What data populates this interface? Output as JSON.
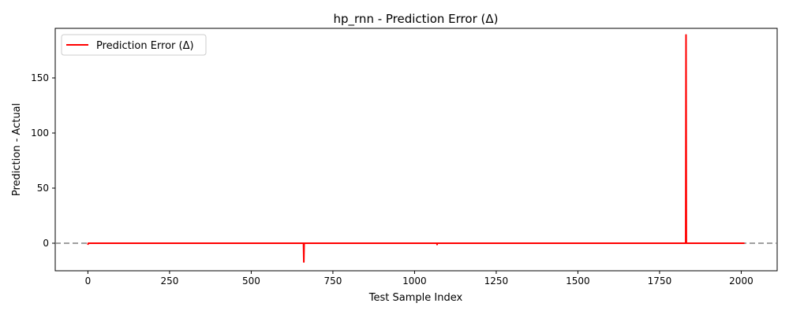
{
  "chart_data": {
    "type": "line",
    "title": "hp_rnn - Prediction Error (Δ)",
    "xlabel": "Test Sample Index",
    "ylabel": "Prediction - Actual",
    "xlim": [
      -100,
      2110
    ],
    "ylim": [
      -25,
      195
    ],
    "x_ticks": [
      0,
      250,
      500,
      750,
      1000,
      1250,
      1500,
      1750,
      2000
    ],
    "y_ticks": [
      0,
      50,
      100,
      150
    ],
    "legend_position": "top-left",
    "grid": false,
    "reference_line": {
      "y": 0,
      "style": "dashed",
      "color": "#808080"
    },
    "series": [
      {
        "name": "Prediction Error (Δ)",
        "color": "#ff0000",
        "x_start": 0,
        "x_end": 2010,
        "baseline": 0,
        "points": [
          [
            0,
            -1.5
          ],
          [
            1,
            0
          ],
          [
            660,
            0
          ],
          [
            661,
            -17
          ],
          [
            662,
            0
          ],
          [
            1068,
            0
          ],
          [
            1069,
            -1.2
          ],
          [
            1070,
            0
          ],
          [
            1830,
            0
          ],
          [
            1831,
            189
          ],
          [
            1832,
            0
          ],
          [
            2010,
            0
          ]
        ]
      }
    ]
  }
}
